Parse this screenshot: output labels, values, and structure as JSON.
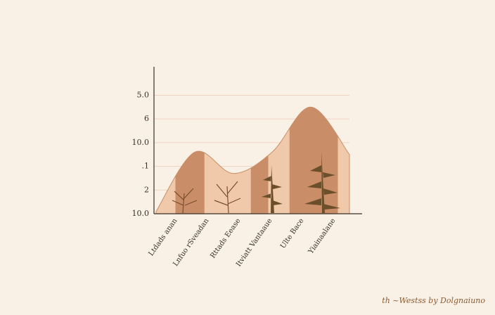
{
  "chart_data": {
    "type": "area",
    "categories": [
      "Ltdads anan",
      "Lnfuo rSveadan",
      "Rttads Eease",
      "Itviatt Vantaaue",
      "Ulte Bace",
      "Yiainaalane"
    ],
    "values": [
      0.1,
      2.6,
      1.7,
      2.6,
      4.5,
      2.5
    ],
    "colors": [
      "#c98e68",
      "#efc9a9"
    ],
    "ylim": [
      0,
      6.2
    ],
    "yticks": [
      {
        "value": 0,
        "label": "10.0"
      },
      {
        "value": 1,
        "label": "2"
      },
      {
        "value": 2,
        "label": ".1"
      },
      {
        "value": 3,
        "label": "10.0"
      },
      {
        "value": 4,
        "label": "6"
      },
      {
        "value": 5,
        "label": "5.0"
      }
    ],
    "grid": true,
    "footer": "th ~Westss by Dolgnaiuno"
  }
}
